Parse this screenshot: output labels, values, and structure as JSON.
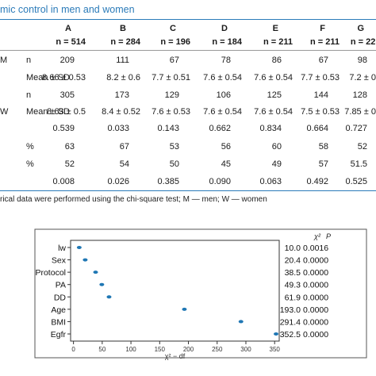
{
  "title": "mic control in men and women",
  "columns": [
    "A",
    "B",
    "C",
    "D",
    "E",
    "F",
    "G"
  ],
  "ns": [
    "n = 514",
    "n = 284",
    "n = 196",
    "n = 184",
    "n = 211",
    "n = 211",
    "n = 22("
  ],
  "rows": [
    {
      "group": "M",
      "label": "n",
      "values": [
        "209",
        "111",
        "67",
        "78",
        "86",
        "67",
        "98"
      ]
    },
    {
      "group": "",
      "label": "Mean ± SD",
      "values": [
        "8.66 ± 0.53",
        "8.2 ± 0.6",
        "7.7 ± 0.51",
        "7.6 ± 0.54",
        "7.6 ± 0.54",
        "7.7 ± 0.53",
        "7.2 ± 0."
      ]
    },
    {
      "group": "",
      "label": "n",
      "values": [
        "305",
        "173",
        "129",
        "106",
        "125",
        "144",
        "128"
      ]
    },
    {
      "group": "W",
      "label": "Mean ± SD",
      "values": [
        "8.63 ± 0.5",
        "8.4 ± 0.52",
        "7.6 ± 0.53",
        "7.6 ± 0.54",
        "7.6 ± 0.54",
        "7.5 ± 0.53",
        "7.85 ± 0."
      ]
    },
    {
      "group": "",
      "label": "",
      "values": [
        "0.539",
        "0.033",
        "0.143",
        "0.662",
        "0.834",
        "0.664",
        "0.727"
      ]
    },
    {
      "group": "",
      "label": "%",
      "values": [
        "63",
        "67",
        "53",
        "56",
        "60",
        "58",
        "52"
      ]
    },
    {
      "group": "",
      "label": "%",
      "values": [
        "52",
        "54",
        "50",
        "45",
        "49",
        "57",
        "51.5"
      ]
    },
    {
      "group": "",
      "label": "",
      "values": [
        "0.008",
        "0.026",
        "0.385",
        "0.090",
        "0.063",
        "0.492",
        "0.525"
      ]
    }
  ],
  "footnote": "rical data were performed using the chi-square test; M — men; W — women",
  "chart_data": {
    "type": "scatter",
    "categories": [
      "lw",
      "Sex",
      "Protocol",
      "PA",
      "DD",
      "Age",
      "BMI",
      "Egfr"
    ],
    "values": [
      10.0,
      20.4,
      38.5,
      49.3,
      61.9,
      193.0,
      291.4,
      352.5
    ],
    "chi2_labels": [
      "10.0",
      "20.4",
      "38.5",
      "49.3",
      "61.9",
      "193.0",
      "291.4",
      "352.5"
    ],
    "p_labels": [
      "0.0016",
      "0.0000",
      "0.0000",
      "0.0000",
      "0.0000",
      "0.0000",
      "0.0000",
      "0.0000"
    ],
    "xlabel": "χ² − df",
    "xticks": [
      0,
      50,
      100,
      150,
      200,
      250,
      300,
      350
    ],
    "xlim": [
      -5,
      358
    ],
    "right_header_chi": "χ²",
    "right_header_p": "P",
    "point_color": "#1f77b4",
    "grid": false
  }
}
